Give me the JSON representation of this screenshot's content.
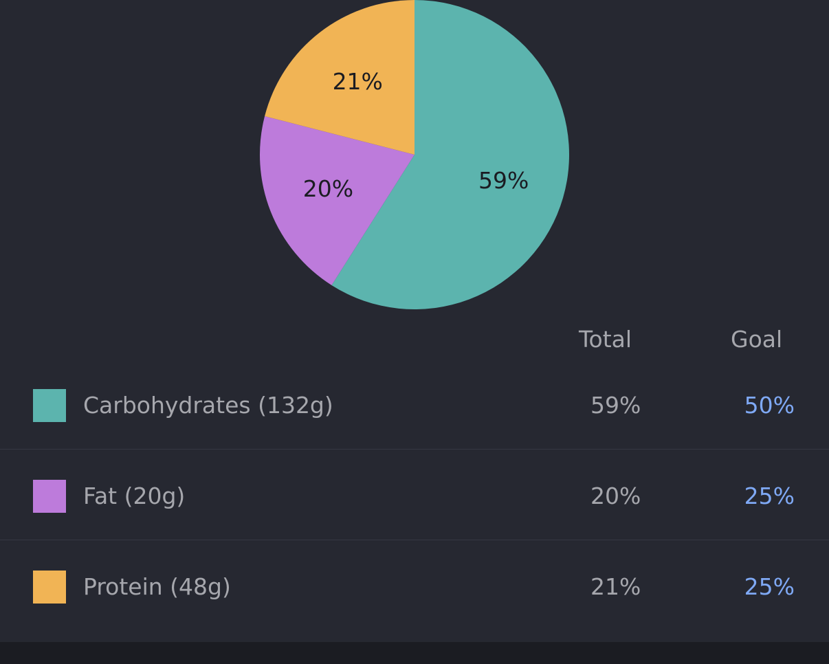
{
  "chart_data": {
    "type": "pie",
    "slices": [
      {
        "name": "Carbohydrates",
        "value": 59,
        "label": "59%",
        "color": "#5cb4ae"
      },
      {
        "name": "Fat",
        "value": 20,
        "label": "20%",
        "color": "#bd7bdb"
      },
      {
        "name": "Protein",
        "value": 21,
        "label": "21%",
        "color": "#f1b455"
      }
    ],
    "start_angle_deg": 0,
    "direction": "clockwise"
  },
  "table": {
    "headers": {
      "total": "Total",
      "goal": "Goal"
    },
    "rows": [
      {
        "label": "Carbohydrates (132g)",
        "total": "59%",
        "goal": "50%",
        "color": "#5cb4ae"
      },
      {
        "label": "Fat (20g)",
        "total": "20%",
        "goal": "25%",
        "color": "#bd7bdb"
      },
      {
        "label": "Protein (48g)",
        "total": "21%",
        "goal": "25%",
        "color": "#f1b455"
      }
    ]
  },
  "colors": {
    "background": "#262831",
    "text_muted": "#a6a7ad",
    "goal_accent": "#7fa9f5",
    "divider": "#363843"
  }
}
